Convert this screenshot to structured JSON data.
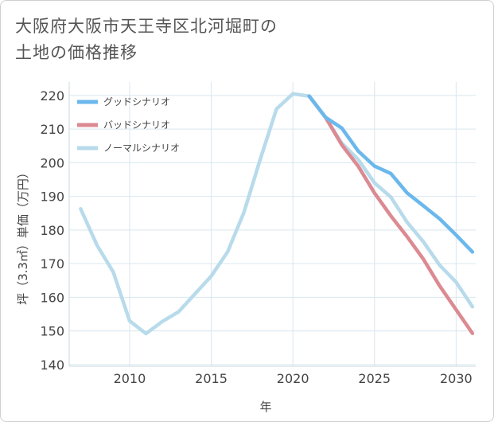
{
  "title": {
    "line1": "大阪府大阪市天王寺区北河堀町の",
    "line2": "土地の価格推移"
  },
  "chart_data": {
    "type": "line",
    "xlabel": "年",
    "ylabel": "坪（3.3㎡）単価（万円）",
    "xlim": [
      2006.3,
      2031.2
    ],
    "ylim": [
      139.5,
      224
    ],
    "xticks": [
      2010,
      2015,
      2020,
      2025,
      2030
    ],
    "yticks": [
      140,
      150,
      160,
      170,
      180,
      190,
      200,
      210,
      220
    ],
    "grid": true,
    "legend_position": "top-left",
    "series": [
      {
        "name": "グッドシナリオ",
        "color": "#6bb8ec",
        "x": [
          2021,
          2022,
          2023,
          2024,
          2025,
          2026,
          2027,
          2028,
          2029,
          2030,
          2031
        ],
        "values": [
          219.8,
          213.5,
          210.3,
          203.5,
          199.0,
          196.8,
          191.0,
          187.2,
          183.3,
          178.5,
          173.5
        ]
      },
      {
        "name": "バッドシナリオ",
        "color": "#dc8a92",
        "x": [
          2021,
          2022,
          2023,
          2024,
          2025,
          2026,
          2027,
          2028,
          2029,
          2030,
          2031
        ],
        "values": [
          219.8,
          213.5,
          205.3,
          199.0,
          191.0,
          184.2,
          178.0,
          171.3,
          163.3,
          156.3,
          149.3
        ]
      },
      {
        "name": "ノーマルシナリオ",
        "color": "#b8dbeb",
        "x": [
          2007,
          2008,
          2009,
          2010,
          2011,
          2012,
          2013,
          2014,
          2015,
          2016,
          2017,
          2018,
          2019,
          2020,
          2021,
          2022,
          2023,
          2024,
          2025,
          2026,
          2027,
          2028,
          2029,
          2030,
          2031
        ],
        "values": [
          186.3,
          175.5,
          167.5,
          153.0,
          149.2,
          152.8,
          155.7,
          161.0,
          166.3,
          173.5,
          185.2,
          201.0,
          216.0,
          220.5,
          219.8,
          213.5,
          205.8,
          201.0,
          194.0,
          189.8,
          182.3,
          176.5,
          169.5,
          164.5,
          157.2
        ]
      }
    ]
  }
}
